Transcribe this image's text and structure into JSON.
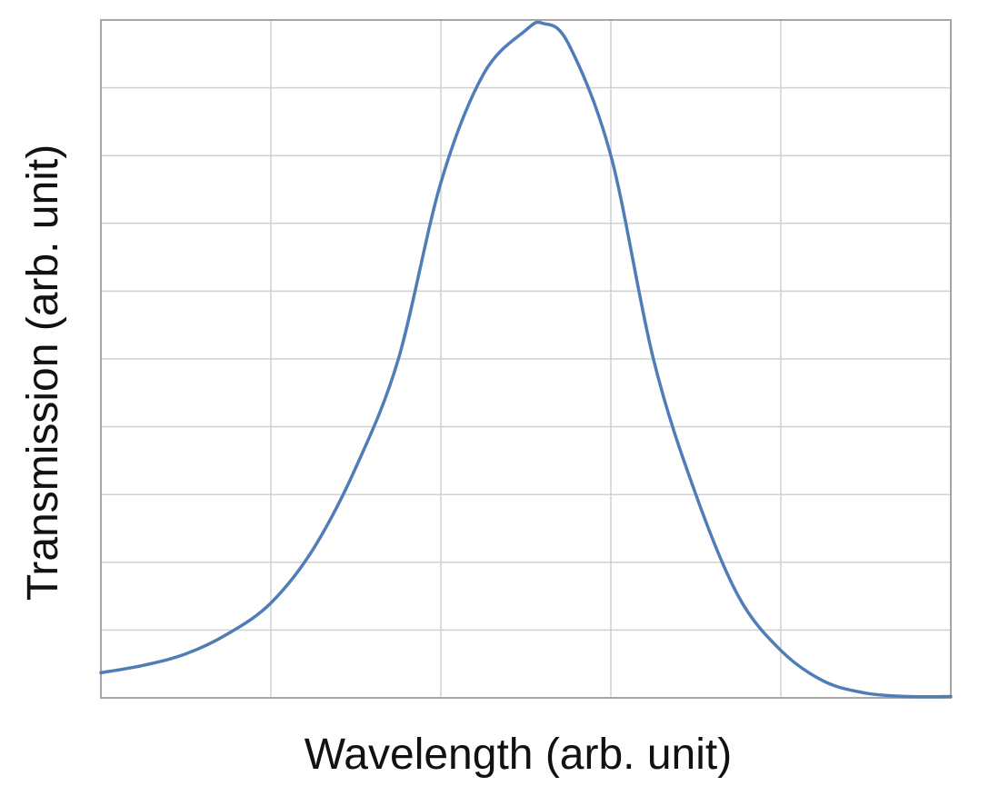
{
  "chart_data": {
    "type": "line",
    "title": "",
    "xlabel": "Wavelength (arb. unit)",
    "ylabel": "Transmission (arb. unit)",
    "xlim": [
      0,
      5
    ],
    "ylim": [
      0,
      10
    ],
    "grid": true,
    "legend": "none",
    "colors": {
      "line": "#4f7db8",
      "grid": "#d0d0d0",
      "frame": "#a6a6a6"
    },
    "series": [
      {
        "x": [
          0,
          0.25,
          0.5,
          0.75,
          1.0,
          1.25,
          1.5,
          1.75,
          2.0,
          2.25,
          2.5,
          2.6,
          2.75,
          3.0,
          3.25,
          3.5,
          3.75,
          4.0,
          4.25,
          4.5,
          4.75,
          5.0
        ],
        "y": [
          0.37,
          0.48,
          0.65,
          0.95,
          1.4,
          2.2,
          3.4,
          5.0,
          7.6,
          9.2,
          9.85,
          9.95,
          9.65,
          8.0,
          5.0,
          3.0,
          1.5,
          0.7,
          0.25,
          0.07,
          0.02,
          0.02
        ]
      }
    ]
  }
}
